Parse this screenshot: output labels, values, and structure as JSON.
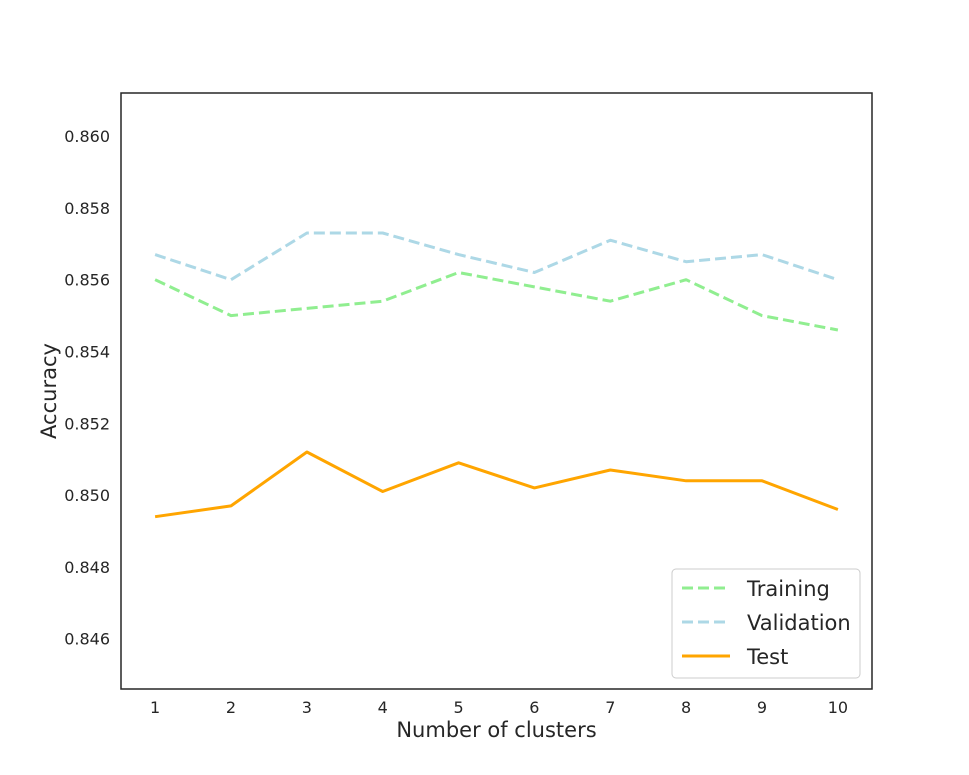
{
  "chart_data": {
    "type": "line",
    "title": "",
    "xlabel": "Number of clusters",
    "ylabel": "Accuracy",
    "x": [
      1,
      2,
      3,
      4,
      5,
      6,
      7,
      8,
      9,
      10
    ],
    "xticks": [
      "1",
      "2",
      "3",
      "4",
      "5",
      "6",
      "7",
      "8",
      "9",
      "10"
    ],
    "xlim": [
      0.55,
      10.45
    ],
    "ylim": [
      0.8446,
      0.8612
    ],
    "yticks": [
      "0.846",
      "0.848",
      "0.850",
      "0.852",
      "0.854",
      "0.856",
      "0.858",
      "0.860"
    ],
    "grid": false,
    "legend_position": "bottom-right",
    "series": [
      {
        "name": "Training",
        "style": "dashed",
        "color": "#90ee90",
        "values": [
          0.856,
          0.855,
          0.8552,
          0.8554,
          0.8562,
          0.8558,
          0.8554,
          0.856,
          0.855,
          0.8546
        ]
      },
      {
        "name": "Validation",
        "style": "dashed",
        "color": "#add8e6",
        "values": [
          0.8567,
          0.856,
          0.8573,
          0.8573,
          0.8567,
          0.8562,
          0.8571,
          0.8565,
          0.8567,
          0.856
        ]
      },
      {
        "name": "Test",
        "style": "solid",
        "color": "#ffa500",
        "values": [
          0.8494,
          0.8497,
          0.8512,
          0.8501,
          0.8509,
          0.8502,
          0.8507,
          0.8504,
          0.8504,
          0.8496
        ]
      }
    ]
  }
}
